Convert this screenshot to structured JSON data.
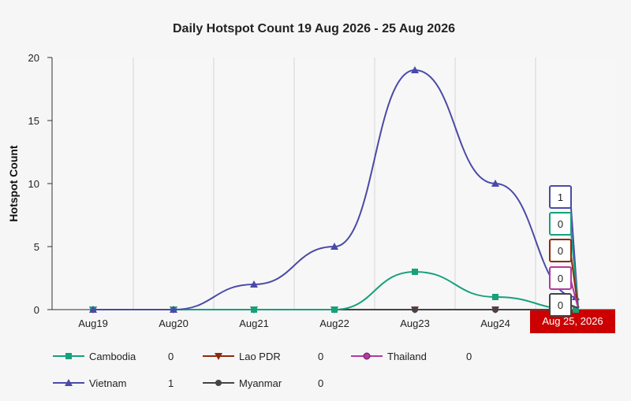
{
  "chart_data": {
    "type": "line",
    "title": "Daily Hotspot Count 19 Aug 2026 - 25 Aug 2026",
    "xlabel": "",
    "ylabel": "Hotspot Count",
    "categories": [
      "Aug19",
      "Aug20",
      "Aug21",
      "Aug22",
      "Aug23",
      "Aug24",
      "Aug 25, 2026"
    ],
    "ylim": [
      0,
      20
    ],
    "yticks": [
      "0",
      "5",
      "10",
      "15",
      "20"
    ],
    "grid": true,
    "highlighted_category_label": "Aug 25, 2026",
    "series": [
      {
        "name": "Cambodia",
        "values": [
          0,
          0,
          0,
          0,
          3,
          1,
          0
        ],
        "color": "#17a07c",
        "marker": "square",
        "tooltip": "0",
        "legend_value": "0"
      },
      {
        "name": "Lao PDR",
        "values": [
          0,
          0,
          0,
          0,
          0,
          0,
          0
        ],
        "color": "#8b2b0e",
        "marker": "triangle-down",
        "tooltip": "0",
        "legend_value": "0"
      },
      {
        "name": "Thailand",
        "values": [
          0,
          0,
          0,
          0,
          0,
          0,
          0
        ],
        "color": "#b23aa0",
        "marker": "circle",
        "tooltip": "0",
        "legend_value": "0"
      },
      {
        "name": "Vietnam",
        "values": [
          0,
          0,
          2,
          5,
          19,
          10,
          1
        ],
        "color": "#4a4aa8",
        "marker": "triangle",
        "tooltip": "1",
        "legend_value": "1"
      },
      {
        "name": "Myanmar",
        "values": [
          0,
          0,
          0,
          0,
          0,
          0,
          0
        ],
        "color": "#444444",
        "marker": "circle",
        "tooltip": "0",
        "legend_value": "0"
      }
    ],
    "highlight_color": "#cc0000"
  }
}
